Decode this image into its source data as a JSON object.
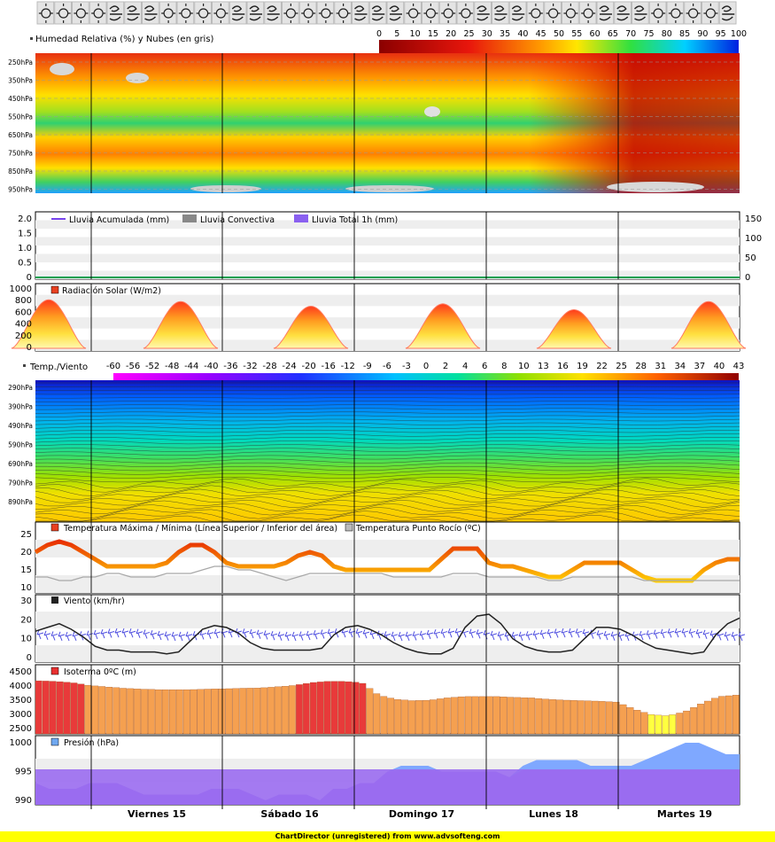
{
  "icons_row": {
    "count": 40,
    "kinds": [
      "sun",
      "wind",
      "sun",
      "wind"
    ]
  },
  "humidity_panel": {
    "title": "Humedad Relativa (%) y Nubes (en gris)",
    "scale_ticks": [
      "0",
      "5",
      "10",
      "15",
      "20",
      "25",
      "30",
      "35",
      "40",
      "45",
      "50",
      "55",
      "60",
      "65",
      "70",
      "75",
      "80",
      "85",
      "90",
      "95",
      "100"
    ],
    "pressure_labels": [
      "250hPa",
      "350hPa",
      "450hPa",
      "550hPa",
      "650hPa",
      "750hPa",
      "850hPa",
      "950hPa"
    ]
  },
  "rain_panel": {
    "legend": [
      "Lluvia Acumulada (mm)",
      "Lluvia Convectiva",
      "Lluvia Total 1h (mm)"
    ],
    "left_ticks": [
      "2.0",
      "1.5",
      "1.0",
      "0.5",
      "0"
    ],
    "right_ticks": [
      "150",
      "100",
      "50",
      "0"
    ]
  },
  "radiation_panel": {
    "legend": "Radiación Solar (W/m2)",
    "ticks": [
      "1000",
      "800",
      "600",
      "400",
      "200",
      "0"
    ]
  },
  "temp_panel": {
    "title": "Temp./Viento",
    "scale_ticks": [
      "-60",
      "-56",
      "-52",
      "-48",
      "-44",
      "-40",
      "-36",
      "-32",
      "-28",
      "-24",
      "-20",
      "-16",
      "-12",
      "-9",
      "-6",
      "-3",
      "0",
      "2",
      "4",
      "6",
      "8",
      "10",
      "13",
      "16",
      "19",
      "22",
      "25",
      "28",
      "31",
      "34",
      "37",
      "40",
      "43"
    ],
    "pressure_labels": [
      "290hPa",
      "390hPa",
      "490hPa",
      "590hPa",
      "690hPa",
      "790hPa",
      "890hPa"
    ]
  },
  "tmaxmin_panel": {
    "legend": [
      "Temperatura Máxima / Mínima (Línea Superior / Inferior del área)",
      "Temperatura Punto Rocío (ºC)"
    ],
    "ticks": [
      "25",
      "20",
      "15",
      "10"
    ]
  },
  "wind_panel": {
    "legend": "Viento (km/hr)",
    "ticks": [
      "30",
      "20",
      "10",
      "0"
    ]
  },
  "iso_panel": {
    "legend": "Isoterma 0ºC (m)",
    "ticks": [
      "4500",
      "4000",
      "3500",
      "3000",
      "2500"
    ]
  },
  "press_panel": {
    "legend": "Presión (hPa)",
    "ticks": [
      "1000",
      "995",
      "990"
    ]
  },
  "days": [
    "Viernes 15",
    "Sábado 16",
    "Domingo 17",
    "Lunes 18",
    "Martes 19"
  ],
  "credit": "ChartDirector (unregistered) from www.advsofteng.com",
  "chart_data": [
    {
      "type": "heatmap",
      "title": "Humedad Relativa (%) y Nubes (en gris)",
      "x": "time",
      "y": "pressure (hPa)",
      "zlim": [
        0,
        100
      ]
    },
    {
      "type": "line",
      "title": "Lluvia",
      "series": [
        {
          "name": "Lluvia Acumulada (mm)",
          "values": [
            0,
            0,
            0,
            0,
            0,
            0,
            0,
            0,
            0,
            0,
            0,
            0,
            0,
            0,
            0,
            0,
            0,
            0,
            0,
            0,
            0,
            0,
            0,
            0,
            0,
            0,
            0,
            0,
            0,
            0,
            0,
            0,
            0,
            0,
            0,
            0,
            0,
            0,
            0,
            0
          ]
        }
      ],
      "ylim": [
        0,
        2.2
      ]
    },
    {
      "type": "area",
      "title": "Radiación Solar (W/m2)",
      "series": [
        {
          "name": "Radiación Solar (W/m2)",
          "peaks": [
            830,
            800,
            720,
            760,
            660,
            800
          ]
        }
      ],
      "ylim": [
        0,
        1050
      ]
    },
    {
      "type": "heatmap",
      "title": "Temp./Viento",
      "y": "pressure (hPa)",
      "zlim": [
        -60,
        43
      ]
    },
    {
      "type": "area",
      "title": "Temperatura Máxima / Mínima",
      "series": [
        {
          "name": "Temperatura Máxima / Mínima",
          "values": [
            20,
            22,
            23,
            22,
            20,
            18,
            16,
            16,
            16,
            16,
            16,
            17,
            20,
            22,
            22,
            20,
            17,
            16,
            16,
            16,
            16,
            17,
            19,
            20,
            19,
            16,
            15,
            15,
            15,
            15,
            15,
            15,
            15,
            15,
            18,
            21,
            21,
            21,
            17,
            16,
            16,
            15,
            14,
            13,
            13,
            15,
            17,
            17,
            17,
            17,
            15,
            13,
            12,
            12,
            12,
            12,
            15,
            17,
            18,
            18
          ]
        },
        {
          "name": "Temperatura Punto Rocío (ºC)",
          "values": [
            13,
            13,
            12,
            12,
            13,
            13,
            14,
            14,
            13,
            13,
            13,
            14,
            14,
            14,
            15,
            16,
            16,
            15,
            15,
            14,
            13,
            12,
            13,
            14,
            14,
            14,
            14,
            14,
            14,
            14,
            13,
            13,
            13,
            13,
            13,
            14,
            14,
            14,
            13,
            13,
            13,
            13,
            13,
            12,
            12,
            13,
            13,
            13,
            13,
            13,
            13,
            12,
            12,
            12,
            12,
            12,
            12,
            12,
            12,
            12
          ]
        }
      ],
      "ylim": [
        10,
        26
      ]
    },
    {
      "type": "line",
      "title": "Viento (km/hr)",
      "series": [
        {
          "name": "Viento (km/hr)",
          "values": [
            14,
            16,
            18,
            15,
            11,
            6,
            4,
            4,
            3,
            3,
            3,
            2,
            3,
            9,
            15,
            17,
            16,
            13,
            8,
            5,
            4,
            4,
            4,
            4,
            5,
            12,
            16,
            17,
            15,
            12,
            8,
            5,
            3,
            2,
            2,
            5,
            16,
            22,
            23,
            18,
            10,
            6,
            4,
            3,
            3,
            4,
            10,
            16,
            16,
            15,
            12,
            8,
            5,
            4,
            3,
            2,
            3,
            12,
            18,
            21
          ]
        }
      ],
      "ylim": [
        0,
        30
      ]
    },
    {
      "type": "bar",
      "title": "Isoterma 0ºC (m)",
      "values": [
        4220,
        4200,
        4150,
        4050,
        4000,
        3950,
        3920,
        3900,
        3900,
        3900,
        3920,
        3930,
        3950,
        3960,
        4000,
        4050,
        4150,
        4200,
        4200,
        4150,
        3700,
        3550,
        3500,
        3520,
        3600,
        3650,
        3650,
        3650,
        3620,
        3600,
        3550,
        3520,
        3500,
        3480,
        3450,
        3200,
        3000,
        2950,
        3100,
        3400,
        3650,
        3700
      ],
      "ylim": [
        2300,
        4800
      ]
    },
    {
      "type": "area",
      "title": "Presión (hPa)",
      "values": [
        993,
        992,
        992,
        992,
        993,
        993,
        993,
        992,
        991,
        991,
        991,
        991,
        991,
        992,
        992,
        992,
        991,
        990,
        991,
        991,
        991,
        990,
        992,
        992,
        993,
        993,
        995,
        996,
        996,
        996,
        995,
        995,
        995,
        995,
        995,
        994,
        996,
        997,
        997,
        997,
        997,
        996,
        996,
        996,
        996,
        997,
        998,
        999,
        1000,
        1000,
        999,
        998,
        998
      ],
      "ylim": [
        989,
        1001
      ]
    }
  ]
}
